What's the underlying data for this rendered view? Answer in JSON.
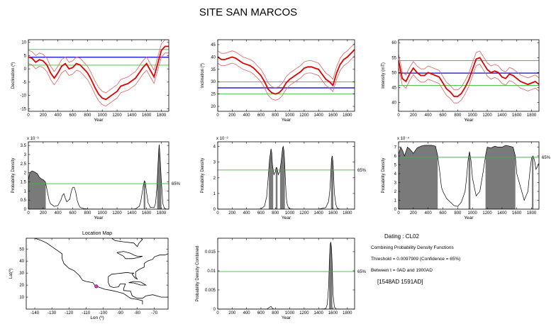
{
  "title": "SITE SAN MARCOS",
  "colors": {
    "mean": "#e00000",
    "band": "#e06060",
    "site": "#3030e0",
    "green": "#30c030",
    "fill": "#7a7a7a"
  },
  "info": {
    "dating": "Dating : CL02",
    "combining": "Combining Probability Density Functions",
    "threshold": "Threshold = 0.0097909 (Confidence = 65%)",
    "between": "Between t = 0AD and 1900AD",
    "result": "[1548AD   1591AD]"
  },
  "chart_data": [
    {
      "id": "dec",
      "type": "line",
      "xlabel": "Year",
      "ylabel": "Declination (º)",
      "xlim": [
        0,
        1900
      ],
      "ylim": [
        -16,
        11
      ],
      "xticks": [
        0,
        200,
        400,
        600,
        800,
        1000,
        1200,
        1400,
        1600,
        1800
      ],
      "yticks": [
        -15,
        -10,
        -5,
        0,
        5,
        10
      ],
      "mean": {
        "x": [
          0,
          50,
          100,
          150,
          200,
          250,
          300,
          350,
          400,
          450,
          500,
          550,
          600,
          650,
          700,
          750,
          800,
          850,
          900,
          950,
          1000,
          1050,
          1100,
          1150,
          1200,
          1250,
          1300,
          1350,
          1400,
          1450,
          1500,
          1550,
          1600,
          1650,
          1700,
          1750,
          1800,
          1850,
          1900
        ],
        "y": [
          4.5,
          4,
          2.5,
          3.5,
          3,
          1.5,
          -1.5,
          -3.5,
          -1.5,
          1,
          2,
          0,
          0.5,
          2,
          1.5,
          0,
          -1.5,
          -4,
          -7,
          -9.5,
          -11,
          -11.5,
          -10.5,
          -9.5,
          -8.5,
          -6.5,
          -6,
          -5.5,
          -4.5,
          -3.5,
          -1.5,
          0.5,
          2,
          -0.5,
          -3,
          2,
          7,
          8.5,
          8.5
        ]
      },
      "band_half_width": 2.5,
      "hlines": [
        {
          "y": 4.4,
          "kind": "site"
        },
        {
          "y": 7.3,
          "kind": "green"
        },
        {
          "y": 1.4,
          "kind": "green"
        }
      ]
    },
    {
      "id": "inc",
      "type": "line",
      "xlabel": "Year",
      "ylabel": "Inclination (º)",
      "xlim": [
        0,
        1900
      ],
      "ylim": [
        18,
        47
      ],
      "xticks": [
        0,
        200,
        400,
        600,
        800,
        1000,
        1200,
        1400,
        1600,
        1800
      ],
      "yticks": [
        20,
        25,
        30,
        35,
        40,
        45
      ],
      "mean": {
        "x": [
          0,
          50,
          100,
          150,
          200,
          250,
          300,
          350,
          400,
          450,
          500,
          550,
          600,
          650,
          700,
          750,
          800,
          850,
          900,
          950,
          1000,
          1050,
          1100,
          1150,
          1200,
          1250,
          1300,
          1350,
          1400,
          1450,
          1500,
          1550,
          1600,
          1650,
          1700,
          1750,
          1800,
          1850,
          1900
        ],
        "y": [
          40,
          39,
          39,
          39.5,
          40,
          39.5,
          38.5,
          37.5,
          37,
          36.5,
          35.5,
          34,
          32.5,
          30,
          27,
          25.5,
          25,
          25.5,
          27,
          29.5,
          31,
          32,
          33,
          34,
          35.5,
          36,
          36,
          35.5,
          35,
          33,
          31,
          30,
          28.5,
          33.5,
          37,
          39,
          40,
          41.5,
          43
        ]
      },
      "band_half_width": 2.5,
      "hlines": [
        {
          "y": 27.5,
          "kind": "site"
        },
        {
          "y": 29.9,
          "kind": "green"
        },
        {
          "y": 25.1,
          "kind": "green"
        }
      ]
    },
    {
      "id": "int",
      "type": "line",
      "xlabel": "Year",
      "ylabel": "Intensity (mT)",
      "xlim": [
        0,
        1900
      ],
      "ylim": [
        37,
        61
      ],
      "xticks": [
        0,
        200,
        400,
        600,
        800,
        1000,
        1200,
        1400,
        1600,
        1800
      ],
      "yticks": [
        40,
        45,
        50,
        55,
        60
      ],
      "mean": {
        "x": [
          0,
          50,
          100,
          150,
          200,
          250,
          300,
          350,
          400,
          450,
          500,
          550,
          600,
          650,
          700,
          750,
          800,
          850,
          900,
          950,
          1000,
          1050,
          1100,
          1150,
          1200,
          1250,
          1300,
          1350,
          1400,
          1450,
          1500,
          1550,
          1600,
          1650,
          1700,
          1750,
          1800,
          1850,
          1900
        ],
        "y": [
          54,
          48,
          47,
          49.5,
          51.5,
          50,
          49,
          49,
          50,
          49.5,
          49,
          48.5,
          46.5,
          44.5,
          43.5,
          42,
          42,
          43,
          45,
          47.5,
          51,
          54.5,
          55,
          53,
          51,
          50,
          50.5,
          50,
          48.5,
          48,
          49.5,
          49,
          48,
          47,
          46.5,
          46,
          46.5,
          47,
          46
        ]
      },
      "band_half_width": 2.2,
      "hlines": [
        {
          "y": 49.8,
          "kind": "site"
        },
        {
          "y": 54.0,
          "kind": "green"
        },
        {
          "y": 45.7,
          "kind": "green"
        }
      ]
    },
    {
      "id": "pdfdec",
      "type": "area",
      "xlabel": "Year",
      "ylabel": "Probability Density",
      "scale_label": "x 10⁻³",
      "xlim": [
        0,
        1900
      ],
      "ylim": [
        0,
        3.7
      ],
      "xticks": [
        0,
        200,
        400,
        600,
        800,
        1000,
        1200,
        1400,
        1600,
        1800
      ],
      "yticks": [
        0,
        0.5,
        1,
        1.5,
        2,
        2.5,
        3,
        3.5
      ],
      "ytick_labels": [
        "0",
        "0.5",
        "1",
        "1.5",
        "2",
        "2.5",
        "3",
        "3.5"
      ],
      "pdf": {
        "x": [
          0,
          20,
          50,
          80,
          120,
          150,
          180,
          200,
          230,
          250,
          280,
          300,
          350,
          400,
          440,
          460,
          480,
          500,
          520,
          560,
          580,
          600,
          620,
          640,
          660,
          680,
          700,
          750,
          800,
          900,
          1000,
          1100,
          1200,
          1300,
          1400,
          1450,
          1500,
          1520,
          1540,
          1560,
          1570,
          1580,
          1600,
          1620,
          1650,
          1700,
          1720,
          1740,
          1760,
          1770,
          1780,
          1800,
          1820,
          1840,
          1870,
          1900
        ],
        "y": [
          1.6,
          2.0,
          2.1,
          2.05,
          1.95,
          1.75,
          1.65,
          1.62,
          1.5,
          1.1,
          0.5,
          0.3,
          0.15,
          0.2,
          0.5,
          0.75,
          0.85,
          0.6,
          0.4,
          0.55,
          0.95,
          1.2,
          1.2,
          0.95,
          0.5,
          0.25,
          0.1,
          0.03,
          0.01,
          0,
          0,
          0,
          0,
          0,
          0,
          0.02,
          0.15,
          0.4,
          0.9,
          1.4,
          1.55,
          1.5,
          0.9,
          0.35,
          0.1,
          0.08,
          0.3,
          1.2,
          3.0,
          3.55,
          3.0,
          1.5,
          0.3,
          0.05,
          0,
          0
        ]
      },
      "threshold": 1.4,
      "threshold_label": "65%"
    },
    {
      "id": "pdfinc",
      "type": "area",
      "xlabel": "Year",
      "ylabel": "Probability Density",
      "scale_label": "x 10⁻³",
      "xlim": [
        0,
        1900
      ],
      "ylim": [
        0,
        4.3
      ],
      "xticks": [
        0,
        200,
        400,
        600,
        800,
        1000,
        1200,
        1400,
        1600,
        1800
      ],
      "yticks": [
        0,
        1,
        2,
        3,
        4
      ],
      "ytick_labels": [
        "0",
        "1",
        "2",
        "3",
        "4"
      ],
      "pdf": {
        "x": [
          0,
          400,
          550,
          600,
          650,
          680,
          700,
          720,
          740,
          750,
          760,
          780,
          800,
          810,
          820,
          830,
          840,
          860,
          880,
          900,
          910,
          920,
          930,
          940,
          950,
          960,
          980,
          1000,
          1100,
          1200,
          1300,
          1400,
          1500,
          1540,
          1560,
          1570,
          1580,
          1590,
          1600,
          1610,
          1620,
          1640,
          1660,
          1700,
          1800,
          1900
        ],
        "y": [
          0,
          0,
          0,
          0.02,
          0.2,
          0.8,
          2.0,
          3.2,
          3.85,
          3.6,
          2.8,
          2.2,
          2.4,
          2.65,
          2.65,
          2.5,
          2.2,
          2.4,
          3.0,
          3.9,
          4.0,
          3.7,
          2.9,
          1.8,
          0.9,
          0.4,
          0.1,
          0.02,
          0,
          0,
          0,
          0,
          0.1,
          0.5,
          1.4,
          2.3,
          3.2,
          3.4,
          3.0,
          2.0,
          1.0,
          0.3,
          0.05,
          0,
          0,
          0
        ]
      },
      "threshold": 2.5,
      "threshold_label": "65%"
    },
    {
      "id": "pdfint",
      "type": "area",
      "xlabel": "Year",
      "ylabel": "Probability Density",
      "scale_label": "x 10⁻⁴",
      "xlim": [
        0,
        1900
      ],
      "ylim": [
        0,
        7.6
      ],
      "xticks": [
        0,
        200,
        400,
        600,
        800,
        1000,
        1200,
        1400,
        1600,
        1800
      ],
      "yticks": [
        0,
        1,
        2,
        3,
        4,
        5,
        6,
        7
      ],
      "ytick_labels": [
        "0",
        "1",
        "2",
        "3",
        "4",
        "5",
        "6",
        "7"
      ],
      "pdf": {
        "x": [
          0,
          30,
          60,
          80,
          100,
          120,
          150,
          200,
          250,
          300,
          350,
          400,
          450,
          500,
          530,
          560,
          580,
          600,
          650,
          700,
          750,
          800,
          850,
          900,
          920,
          940,
          960,
          980,
          1000,
          1050,
          1100,
          1150,
          1180,
          1200,
          1250,
          1300,
          1350,
          1400,
          1450,
          1500,
          1550,
          1580,
          1600,
          1650,
          1700,
          1750,
          1780,
          1800,
          1820,
          1840,
          1860,
          1880,
          1900
        ],
        "y": [
          6.2,
          7.0,
          6.5,
          6.0,
          6.5,
          7.0,
          6.8,
          6.3,
          6.9,
          7.1,
          7.2,
          7.2,
          7.2,
          7.1,
          6.0,
          4.0,
          2.5,
          2.0,
          1.2,
          0.8,
          0.4,
          0.3,
          0.8,
          2.0,
          3.5,
          5.5,
          6.5,
          5.5,
          3.5,
          1.5,
          2.0,
          4.5,
          6.2,
          7.0,
          6.9,
          7.1,
          7.0,
          7.0,
          7.2,
          7.1,
          7.0,
          6.0,
          4.0,
          2.5,
          1.0,
          2.0,
          4.5,
          5.8,
          6.0,
          5.5,
          4.5,
          4.8,
          5.2
        ]
      },
      "threshold": 5.85,
      "threshold_label": "65%"
    },
    {
      "id": "map",
      "type": "scatter",
      "title": "Location Map",
      "xlabel": "Lon (º)",
      "ylabel": "Lat(º)",
      "xlim": [
        -145,
        -62
      ],
      "ylim": [
        0,
        59
      ],
      "xticks": [
        -140,
        -130,
        -120,
        -110,
        -100,
        -90,
        -80,
        -70
      ],
      "yticks": [
        10,
        20,
        30,
        40,
        50
      ],
      "point": {
        "lon": -104,
        "lat": 19
      }
    },
    {
      "id": "pdfcomb",
      "type": "area",
      "xlabel": "Year",
      "ylabel": "Probability Density Combined",
      "xlim": [
        0,
        1900
      ],
      "ylim": [
        0,
        0.0185
      ],
      "xticks": [
        0,
        200,
        400,
        600,
        800,
        1000,
        1200,
        1400,
        1600,
        1800
      ],
      "yticks": [
        0,
        0.005,
        0.01,
        0.015
      ],
      "ytick_labels": [
        "0",
        "0.005",
        "0.01",
        "0.015"
      ],
      "pdf": {
        "x": [
          0,
          600,
          680,
          720,
          740,
          760,
          780,
          800,
          900,
          1000,
          1400,
          1500,
          1520,
          1540,
          1550,
          1560,
          1570,
          1580,
          1590,
          1600,
          1620,
          1650,
          1900
        ],
        "y": [
          0,
          0,
          0,
          0.0005,
          0.0007,
          0.0002,
          0,
          0,
          0,
          0,
          0,
          0.0001,
          0.0012,
          0.006,
          0.0125,
          0.0168,
          0.0175,
          0.016,
          0.011,
          0.004,
          0.0005,
          0,
          0
        ]
      },
      "threshold": 0.0097909,
      "threshold_label": "65%"
    }
  ]
}
